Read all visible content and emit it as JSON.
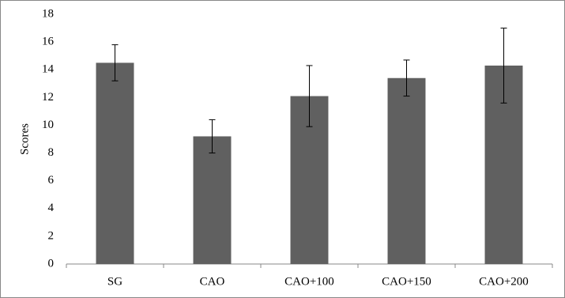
{
  "chart_data": {
    "type": "bar",
    "y_label": "Scores",
    "categories": [
      "SG",
      "CAO",
      "CAO+100",
      "CAO+150",
      "CAO+200"
    ],
    "values": [
      14.5,
      9.2,
      12.1,
      13.4,
      14.3
    ],
    "errors": [
      1.3,
      1.2,
      2.2,
      1.3,
      2.7
    ],
    "color": "#606060",
    "ylim": [
      0,
      18
    ],
    "yticks": [
      0,
      2,
      4,
      6,
      8,
      10,
      12,
      14,
      16,
      18
    ],
    "grid": false
  }
}
